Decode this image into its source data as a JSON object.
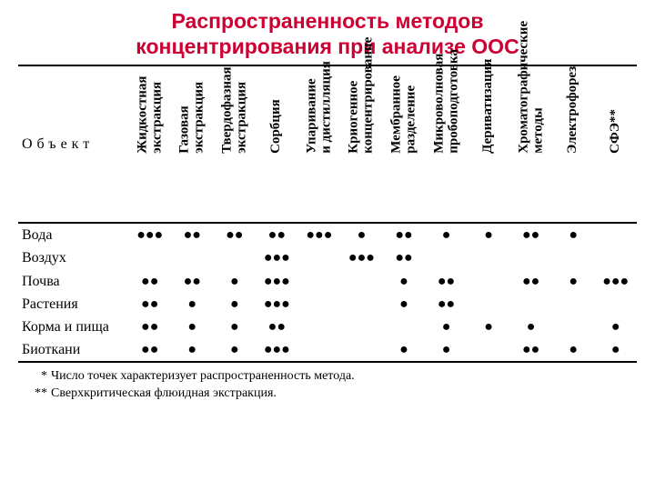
{
  "title_line1": "Распространенность методов",
  "title_line2": "концентрирования при анализе ООС",
  "title_color": "#cc0033",
  "object_header": "Объект",
  "columns": [
    "Жидкостная экстракция",
    "Газовая экстракция",
    "Твердофазная экстракция",
    "Сорбция",
    "Упаривание и дистилляция",
    "Криогенное концентрирование",
    "Мембранное разделение",
    "Микроволновая пробоподготовка",
    "Дериватизация",
    "Хроматографические методы",
    "Электрофорез",
    "СФЭ**"
  ],
  "rows": [
    {
      "label": "Вода",
      "cells": [
        "●●●",
        "●●",
        "●●",
        "●●",
        "●●●",
        "●",
        "●●",
        "●",
        "●",
        "●●",
        "●",
        ""
      ]
    },
    {
      "label": "Воздух",
      "cells": [
        "",
        "",
        "",
        "●●●",
        "",
        "●●●",
        "●●",
        "",
        "",
        "",
        "",
        ""
      ]
    },
    {
      "label": "Почва",
      "cells": [
        "●●",
        "●●",
        "●",
        "●●●",
        "",
        "",
        "●",
        "●●",
        "",
        "●●",
        "●",
        "●●●"
      ]
    },
    {
      "label": "Растения",
      "cells": [
        "●●",
        "●",
        "●",
        "●●●",
        "",
        "",
        "●",
        "●●",
        "",
        "",
        "",
        ""
      ]
    },
    {
      "label": "Корма и пища",
      "cells": [
        "●●",
        "●",
        "●",
        "●●",
        "",
        "",
        "",
        "●",
        "●",
        "●",
        "",
        "●"
      ]
    },
    {
      "label": "Биоткани",
      "cells": [
        "●●",
        "●",
        "●",
        "●●●",
        "",
        "",
        "●",
        "●",
        "",
        "●●",
        "●",
        "●"
      ]
    }
  ],
  "footnote1_star": "*",
  "footnote1": "Число точек характеризует распространенность метода.",
  "footnote2_star": "**",
  "footnote2": "Сверхкритическая флюидная экстракция.",
  "col_widths": {
    "first": "120px",
    "rest": "46px"
  }
}
